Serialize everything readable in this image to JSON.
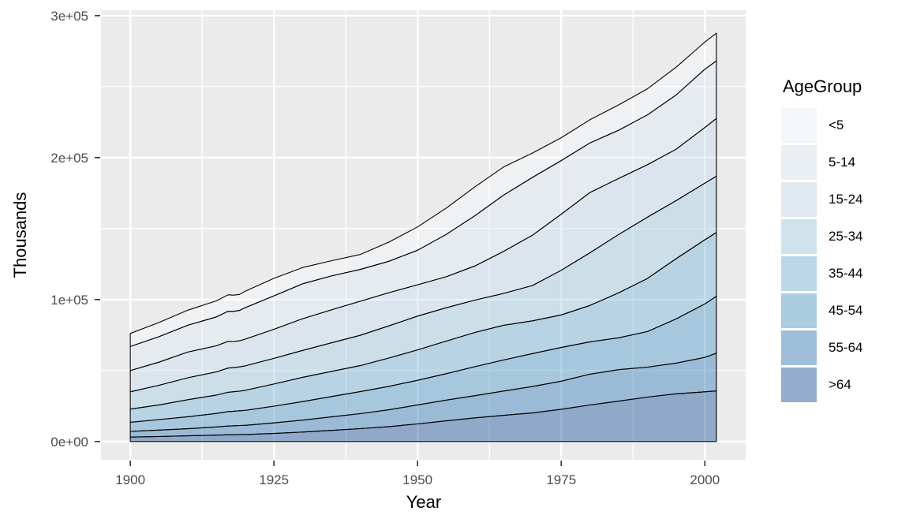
{
  "chart_data": {
    "type": "area",
    "stacked": true,
    "title": "",
    "xlabel": "Year",
    "ylabel": "Thousands",
    "legend_title": "AgeGroup",
    "legend_position": "right",
    "stack_note": "first series is the top band; last series is the bottom band",
    "x": [
      1900,
      1905,
      1910,
      1915,
      1917,
      1918,
      1919,
      1920,
      1925,
      1930,
      1935,
      1940,
      1945,
      1950,
      1955,
      1960,
      1965,
      1970,
      1975,
      1980,
      1985,
      1990,
      1995,
      2000,
      2002
    ],
    "series": [
      {
        "name": "<5",
        "color": "#F7FBFF",
        "values": [
          9181,
          10005,
          10633,
          11313,
          11689,
          11450,
          11300,
          11631,
          12350,
          11444,
          10700,
          10542,
          13500,
          16410,
          18566,
          20341,
          19824,
          17166,
          16121,
          16348,
          17842,
          18408,
          19532,
          19176,
          19519
        ]
      },
      {
        "name": "5-14",
        "color": "#DEEBF7",
        "values": [
          16966,
          17928,
          18862,
          20319,
          21151,
          21216,
          21376,
          22158,
          23577,
          24649,
          23929,
          22424,
          22123,
          24319,
          29821,
          35465,
          39605,
          40733,
          37782,
          34939,
          33919,
          35095,
          38253,
          41078,
          40563
        ]
      },
      {
        "name": "15-24",
        "color": "#C6DBEF",
        "values": [
          14951,
          16293,
          18121,
          18387,
          18781,
          18400,
          18400,
          18821,
          20469,
          22346,
          23211,
          23980,
          23392,
          22098,
          21856,
          24020,
          29662,
          35441,
          39477,
          42475,
          39529,
          36966,
          36230,
          39184,
          40676
        ]
      },
      {
        "name": "25-34",
        "color": "#9ECAE1",
        "values": [
          12161,
          13813,
          15470,
          16372,
          17070,
          17000,
          17100,
          17232,
          18090,
          18954,
          20082,
          21339,
          22660,
          23759,
          23532,
          22818,
          22465,
          24907,
          31471,
          37082,
          41068,
          43161,
          40872,
          39892,
          39676
        ]
      },
      {
        "name": "35-44",
        "color": "#6BAED6",
        "values": [
          9273,
          10341,
          12000,
          12921,
          13619,
          13721,
          13800,
          14121,
          15580,
          17101,
          17744,
          18333,
          19956,
          21450,
          22916,
          24081,
          24447,
          23088,
          22921,
          25634,
          31689,
          37435,
          42468,
          45149,
          44905
        ]
      },
      {
        "name": "45-54",
        "color": "#4292C6",
        "values": [
          6437,
          7406,
          8396,
          9502,
          10168,
          10302,
          10400,
          10514,
          11785,
          13057,
          14355,
          15512,
          16521,
          17343,
          18630,
          20485,
          21877,
          23220,
          23767,
          22800,
          22457,
          25057,
          31079,
          37678,
          40084
        ]
      },
      {
        "name": "55-64",
        "color": "#2171B5",
        "values": [
          4026,
          4571,
          5031,
          5787,
          6189,
          6243,
          6344,
          6475,
          7452,
          8398,
          9499,
          10572,
          11821,
          13370,
          14622,
          15572,
          17115,
          18590,
          19777,
          21703,
          22188,
          21113,
          21623,
          24275,
          26602
        ]
      },
      {
        "name": ">64",
        "color": "#084594",
        "values": [
          3099,
          3466,
          3986,
          4490,
          4690,
          4796,
          4910,
          4933,
          5666,
          6634,
          7804,
          9031,
          10494,
          12397,
          14525,
          16675,
          18451,
          20107,
          22696,
          25714,
          28416,
          31247,
          33619,
          34992,
          35602
        ]
      }
    ],
    "x_ticks": {
      "values": [
        1900,
        1925,
        1950,
        1975,
        2000
      ],
      "labels": [
        "1900",
        "1925",
        "1950",
        "1975",
        "2000"
      ]
    },
    "y_ticks": {
      "values": [
        0,
        100000,
        200000,
        300000
      ],
      "labels": [
        "0e+00",
        "1e+05",
        "2e+05",
        "3e+05"
      ]
    },
    "x_minor": [
      1912.5,
      1937.5,
      1962.5,
      1987.5
    ],
    "y_minor": [
      50000,
      150000,
      250000
    ],
    "xlim": [
      1894.9,
      2007.1
    ],
    "ylim": [
      -12900,
      303800
    ],
    "grid": true,
    "fill_alpha": 0.4,
    "outline_color": "#000000",
    "panel_bg": "#EBEBEB",
    "grid_color": "#FFFFFF",
    "axis_text_color": "#4D4D4D",
    "tick_color": "#333333",
    "legend_key_bg": "#F2F2F2"
  }
}
